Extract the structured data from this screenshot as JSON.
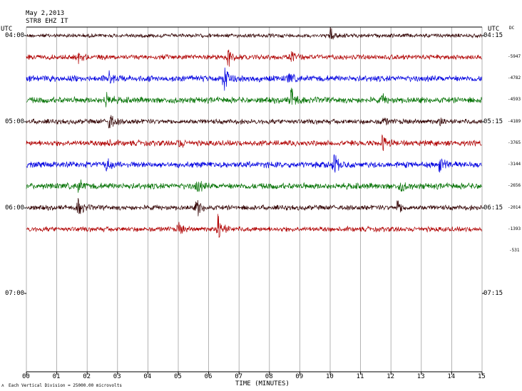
{
  "header": {
    "date": "May 2,2013",
    "station": "STR8 EHZ IT",
    "left_tz": "UTC",
    "right_tz": "UTC",
    "dc_label": "DC"
  },
  "left_time_labels": [
    "04:00",
    "05:00",
    "06:00",
    "07:00"
  ],
  "right_time_labels": [
    "04:15",
    "05:15",
    "06:15",
    "07:15"
  ],
  "dc_values": [
    "-5947",
    "-4782",
    "-4593",
    "-4189",
    "-3765",
    "-3144",
    "-2656",
    "-2014",
    "-1393",
    "-531"
  ],
  "footer": {
    "logo_mark": "ʌ",
    "scale_note": "Each Vertical Division = 25000.00 microvolts",
    "xlabel": "TIME (MINUTES)"
  },
  "colors": {
    "cycle": [
      "#300000",
      "#ffffff",
      "#b00000",
      "#0000e0",
      "#007000"
    ],
    "trace_order": [
      "#300000",
      "#b00000",
      "#0000e0",
      "#007000"
    ],
    "grid": "#a0a0a0",
    "axis": "#000000"
  },
  "chart_data": {
    "type": "line",
    "title": "",
    "xlabel": "TIME (MINUTES)",
    "ylabel": "",
    "x_range": [
      0,
      15
    ],
    "x_ticks": [
      "00",
      "01",
      "02",
      "03",
      "04",
      "05",
      "06",
      "07",
      "08",
      "09",
      "10",
      "11",
      "12",
      "13",
      "14",
      "15"
    ],
    "trace_interval_minutes": 15,
    "first_trace_start": "04:00",
    "num_traces": 10,
    "grid": true,
    "traces": [
      {
        "start": "04:00",
        "color": "#300000",
        "amplitude": 0.35,
        "events": [
          [
            10.0,
            1.6
          ]
        ]
      },
      {
        "start": "04:15",
        "color": "#b00000",
        "amplitude": 0.45,
        "events": [
          [
            1.7,
            0.9
          ],
          [
            6.6,
            2.6
          ],
          [
            8.7,
            1.2
          ]
        ]
      },
      {
        "start": "04:30",
        "color": "#0000e0",
        "amplitude": 0.55,
        "events": [
          [
            2.7,
            1.4
          ],
          [
            6.5,
            3.0
          ],
          [
            8.6,
            1.2
          ]
        ]
      },
      {
        "start": "04:45",
        "color": "#007000",
        "amplitude": 0.55,
        "events": [
          [
            2.6,
            1.6
          ],
          [
            8.7,
            2.6
          ],
          [
            11.7,
            0.8
          ]
        ]
      },
      {
        "start": "05:00",
        "color": "#300000",
        "amplitude": 0.45,
        "events": [
          [
            2.7,
            2.2
          ],
          [
            11.7,
            1.0
          ],
          [
            13.6,
            0.9
          ]
        ]
      },
      {
        "start": "05:15",
        "color": "#b00000",
        "amplitude": 0.5,
        "events": [
          [
            2.6,
            1.0
          ],
          [
            5.0,
            0.9
          ],
          [
            11.7,
            2.2
          ]
        ]
      },
      {
        "start": "05:30",
        "color": "#0000e0",
        "amplitude": 0.55,
        "events": [
          [
            2.6,
            1.4
          ],
          [
            10.1,
            2.4
          ],
          [
            13.6,
            2.6
          ]
        ]
      },
      {
        "start": "05:45",
        "color": "#007000",
        "amplitude": 0.55,
        "events": [
          [
            1.7,
            1.2
          ],
          [
            5.6,
            1.5
          ],
          [
            12.3,
            1.0
          ]
        ]
      },
      {
        "start": "06:00",
        "color": "#300000",
        "amplitude": 0.45,
        "events": [
          [
            1.7,
            2.0
          ],
          [
            5.6,
            2.0
          ],
          [
            12.2,
            1.6
          ]
        ]
      },
      {
        "start": "06:15",
        "color": "#b00000",
        "amplitude": 0.45,
        "events": [
          [
            5.0,
            1.2
          ],
          [
            6.3,
            3.6
          ]
        ]
      }
    ]
  }
}
